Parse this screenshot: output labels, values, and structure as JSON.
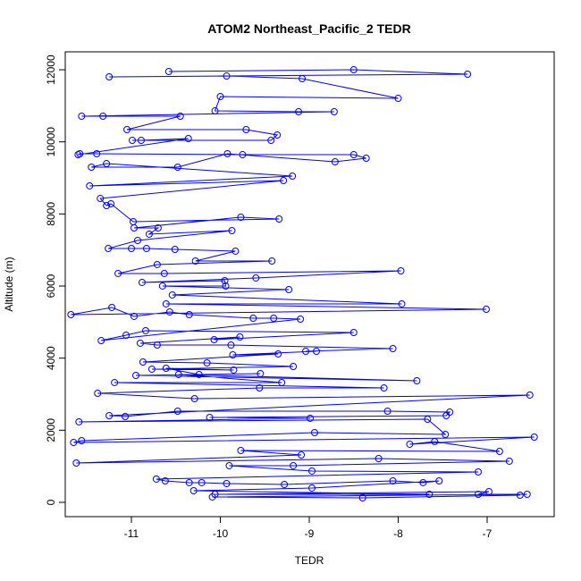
{
  "chart_data": {
    "type": "line",
    "markers": true,
    "title": "ATOM2 Northeast_Pacific_2 TEDR",
    "x_label": "TEDR",
    "y_label": "Altitude (m)",
    "color": "#0000ff",
    "x": [
      -10.58,
      -8.5,
      -7.22,
      -11.25,
      -9.93,
      -9.08,
      -8.0,
      -10.0,
      -10.06,
      -9.12,
      -8.72,
      -11.56,
      -11.32,
      -10.45,
      -11.05,
      -9.71,
      -9.36,
      -9.43,
      -10.99,
      -10.89,
      -10.36,
      -11.6,
      -11.58,
      -11.39,
      -9.75,
      -8.5,
      -8.36,
      -8.71,
      -9.92,
      -10.48,
      -11.45,
      -11.28,
      -9.19,
      -11.47,
      -9.29,
      -11.35,
      -11.28,
      -11.23,
      -10.98,
      -9.34,
      -9.77,
      -10.97,
      -10.7,
      -10.8,
      -9.87,
      -10.93,
      -11.26,
      -11.0,
      -10.83,
      -10.51,
      -9.83,
      -10.28,
      -9.42,
      -10.71,
      -11.15,
      -10.63,
      -7.97,
      -9.6,
      -10.88,
      -9.95,
      -9.94,
      -10.65,
      -9.23,
      -10.54,
      -7.96,
      -10.61,
      -7.01,
      -11.68,
      -11.22,
      -10.97,
      -10.57,
      -10.35,
      -9.63,
      -9.4,
      -9.1,
      -11.34,
      -11.06,
      -10.84,
      -8.5,
      -10.07,
      -9.78,
      -10.9,
      -10.71,
      -9.88,
      -8.06,
      -9.04,
      -8.92,
      -9.86,
      -9.35,
      -10.87,
      -10.15,
      -9.18,
      -10.77,
      -9.85,
      -10.61,
      -10.24,
      -9.55,
      -10.95,
      -7.79,
      -10.47,
      -9.31,
      -11.19,
      -8.16,
      -9.56,
      -11.38,
      -10.29,
      -6.52,
      -11.25,
      -11.07,
      -10.48,
      -8.12,
      -7.42,
      -7.46,
      -10.12,
      -8.99,
      -11.59,
      -7.67,
      -7.47,
      -8.94,
      -11.56,
      -11.65,
      -6.47,
      -7.87,
      -7.59,
      -6.86,
      -9.77,
      -9.09,
      -11.62,
      -8.22,
      -6.75,
      -9.18,
      -9.9,
      -8.97,
      -7.1,
      -10.72,
      -10.62,
      -10.35,
      -10.21,
      -9.93,
      -9.28,
      -8.06,
      -7.72,
      -7.54,
      -8.97,
      -10.3,
      -7.65,
      -10.06,
      -6.98,
      -7.1,
      -6.55,
      -10.09,
      -8.4,
      -6.63
    ],
    "values": [
      11950,
      12000,
      11877,
      11803,
      11827,
      11753,
      11207,
      11257,
      10860,
      10836,
      10836,
      10712,
      10712,
      10712,
      10340,
      10340,
      10191,
      10042,
      10042,
      10042,
      10092,
      9645,
      9670,
      9670,
      9645,
      9645,
      9546,
      9447,
      9670,
      9298,
      9298,
      9397,
      9050,
      8778,
      8926,
      8430,
      8232,
      8282,
      7786,
      7860,
      7910,
      7612,
      7612,
      7439,
      7538,
      7265,
      7042,
      7042,
      7042,
      7017,
      6968,
      6695,
      6695,
      6596,
      6348,
      6348,
      6422,
      6224,
      6100,
      6149,
      6001,
      6001,
      5901,
      5753,
      5505,
      5505,
      5356,
      5207,
      5406,
      5158,
      5282,
      5207,
      5108,
      5108,
      5083,
      4488,
      4637,
      4761,
      4711,
      4513,
      4587,
      4414,
      4364,
      4364,
      4265,
      4190,
      4190,
      4091,
      4116,
      3893,
      3868,
      3769,
      3695,
      3670,
      3719,
      3546,
      3571,
      3521,
      3372,
      3546,
      3323,
      3323,
      3174,
      3174,
      3025,
      2876,
      2976,
      2405,
      2380,
      2529,
      2529,
      2504,
      2405,
      2356,
      2331,
      2232,
      2306,
      1884,
      1934,
      1711,
      1661,
      1810,
      1612,
      1686,
      1413,
      1438,
      1314,
      1091,
      1215,
      1141,
      1017,
      1017,
      868,
      843,
      645,
      595,
      546,
      546,
      521,
      496,
      595,
      546,
      595,
      397,
      322,
      223,
      223,
      298,
      223,
      223,
      149,
      124,
      198
    ],
    "xlim": [
      -11.744,
      -6.246
    ],
    "xticks": [
      -11,
      -10,
      -9,
      -8,
      -7
    ],
    "ylim": [
      -397,
      12497
    ],
    "yticks": [
      0,
      2000,
      4000,
      6000,
      8000,
      10000,
      12000
    ]
  }
}
